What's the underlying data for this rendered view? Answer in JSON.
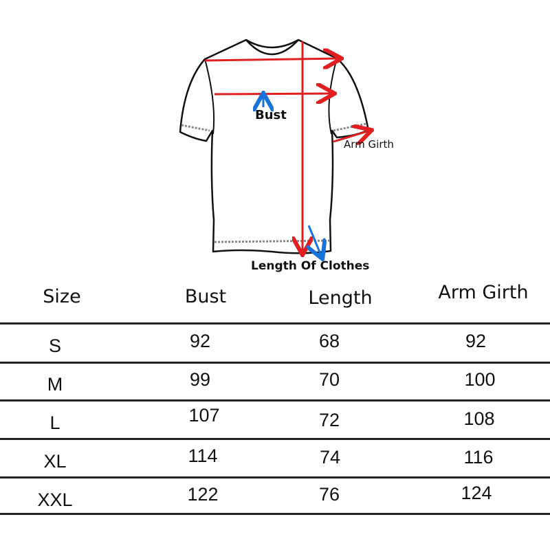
{
  "diagram": {
    "labels": {
      "bust": "Bust",
      "arm_girth": "Arm Girth",
      "length": "Length Of Clothes"
    },
    "colors": {
      "measure_arrow": "#e02020",
      "pointer_arrow": "#1a73d9",
      "outline": "#111111"
    }
  },
  "table": {
    "headers": [
      "Size",
      "Bust",
      "Length",
      "Arm Girth"
    ],
    "rows": [
      {
        "size": "S",
        "bust": "92",
        "length": "68",
        "arm_girth": "92"
      },
      {
        "size": "M",
        "bust": "99",
        "length": "70",
        "arm_girth": "100"
      },
      {
        "size": "L",
        "bust": "107",
        "length": "72",
        "arm_girth": "108"
      },
      {
        "size": "XL",
        "bust": "114",
        "length": "74",
        "arm_girth": "116"
      },
      {
        "size": "XXL",
        "bust": "122",
        "length": "76",
        "arm_girth": "124"
      }
    ]
  }
}
